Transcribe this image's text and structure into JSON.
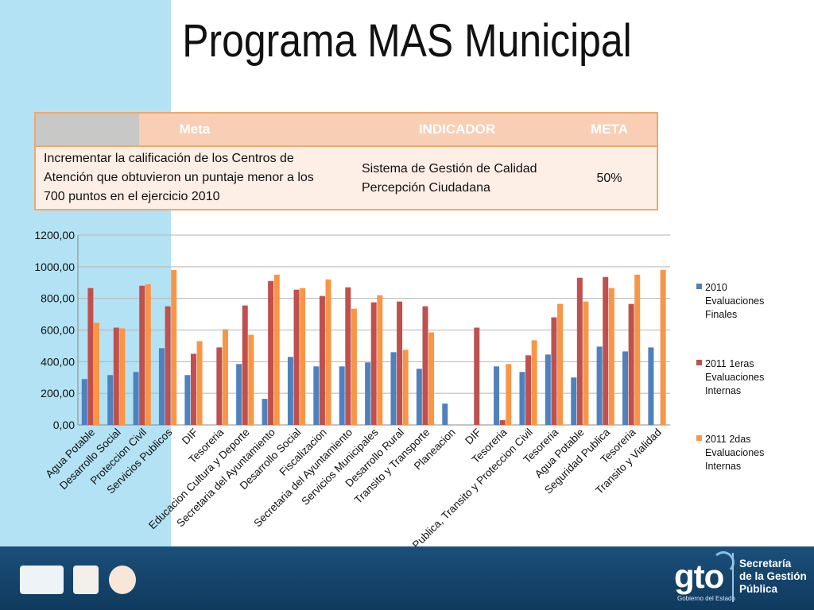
{
  "title": "Programa MAS Municipal",
  "table": {
    "headers": [
      "Meta",
      "INDICADOR",
      "META"
    ],
    "row": {
      "meta_lines": [
        "Incrementar la calificación de los Centros de",
        "Atención que obtuvieron un puntaje menor  a los",
        "700 puntos en el ejercicio 2010"
      ],
      "indicador_lines": [
        "Sistema de Gestión de Calidad",
        "Percepción Ciudadana"
      ],
      "valor": "50%"
    }
  },
  "chart_data": {
    "type": "bar",
    "ylim": [
      0,
      1200
    ],
    "yticks": [
      "0,00",
      "200,00",
      "400,00",
      "600,00",
      "800,00",
      "1000,00",
      "1200,00"
    ],
    "grid": true,
    "legend_position": "right",
    "categories": [
      "Agua Potable",
      "Desarrollo Social",
      "Proteccion Civil",
      "Servicios Publicos",
      "DIF",
      "Tesoreria",
      "Educacion Cultura y Deporte",
      "Secretaria del Ayuntamiento",
      "Desarrollo Social",
      "Fiscalizacion",
      "Secretaria del Ayuntamiento",
      "Servicios Municipales",
      "Desarrollo Rural",
      "Transito y Transporte",
      "Planeacion",
      "DIF",
      "Tesoreria",
      "Seguridad Publica, Transito y Proteccion Civil",
      "Tesoreria",
      "Agua Potable",
      "Seguridad Publica",
      "Tesoreria",
      "Transito y Vialidad"
    ],
    "series": [
      {
        "name": "2010 Evaluaciones Finales",
        "color": "#4f81bd",
        "values": [
          290,
          315,
          335,
          485,
          315,
          null,
          385,
          165,
          430,
          370,
          370,
          395,
          460,
          355,
          135,
          null,
          370,
          335,
          445,
          300,
          495,
          465,
          490
        ]
      },
      {
        "name": "2011 1eras Evaluaciones Internas",
        "color": "#c0504d",
        "values": [
          865,
          615,
          880,
          750,
          450,
          490,
          755,
          910,
          855,
          815,
          870,
          775,
          780,
          750,
          null,
          615,
          30,
          440,
          680,
          930,
          935,
          765,
          null
        ]
      },
      {
        "name": "2011 2das Evaluaciones Internas",
        "color": "#f79646",
        "values": [
          645,
          610,
          890,
          980,
          530,
          605,
          570,
          950,
          865,
          920,
          735,
          820,
          475,
          585,
          null,
          null,
          385,
          535,
          765,
          780,
          865,
          950,
          980
        ]
      }
    ],
    "legend_lines": [
      [
        "2010",
        "Evaluaciones",
        "Finales"
      ],
      [
        "2011 1eras",
        "Evaluaciones",
        "Internas"
      ],
      [
        "2011 2das",
        "Evaluaciones",
        "Internas"
      ]
    ]
  },
  "footer": {
    "brand": "gto",
    "brand_sub": "Gobierno del Estado",
    "secretaria_lines": [
      "Secretaría",
      "de la Gestión",
      "Pública"
    ]
  }
}
